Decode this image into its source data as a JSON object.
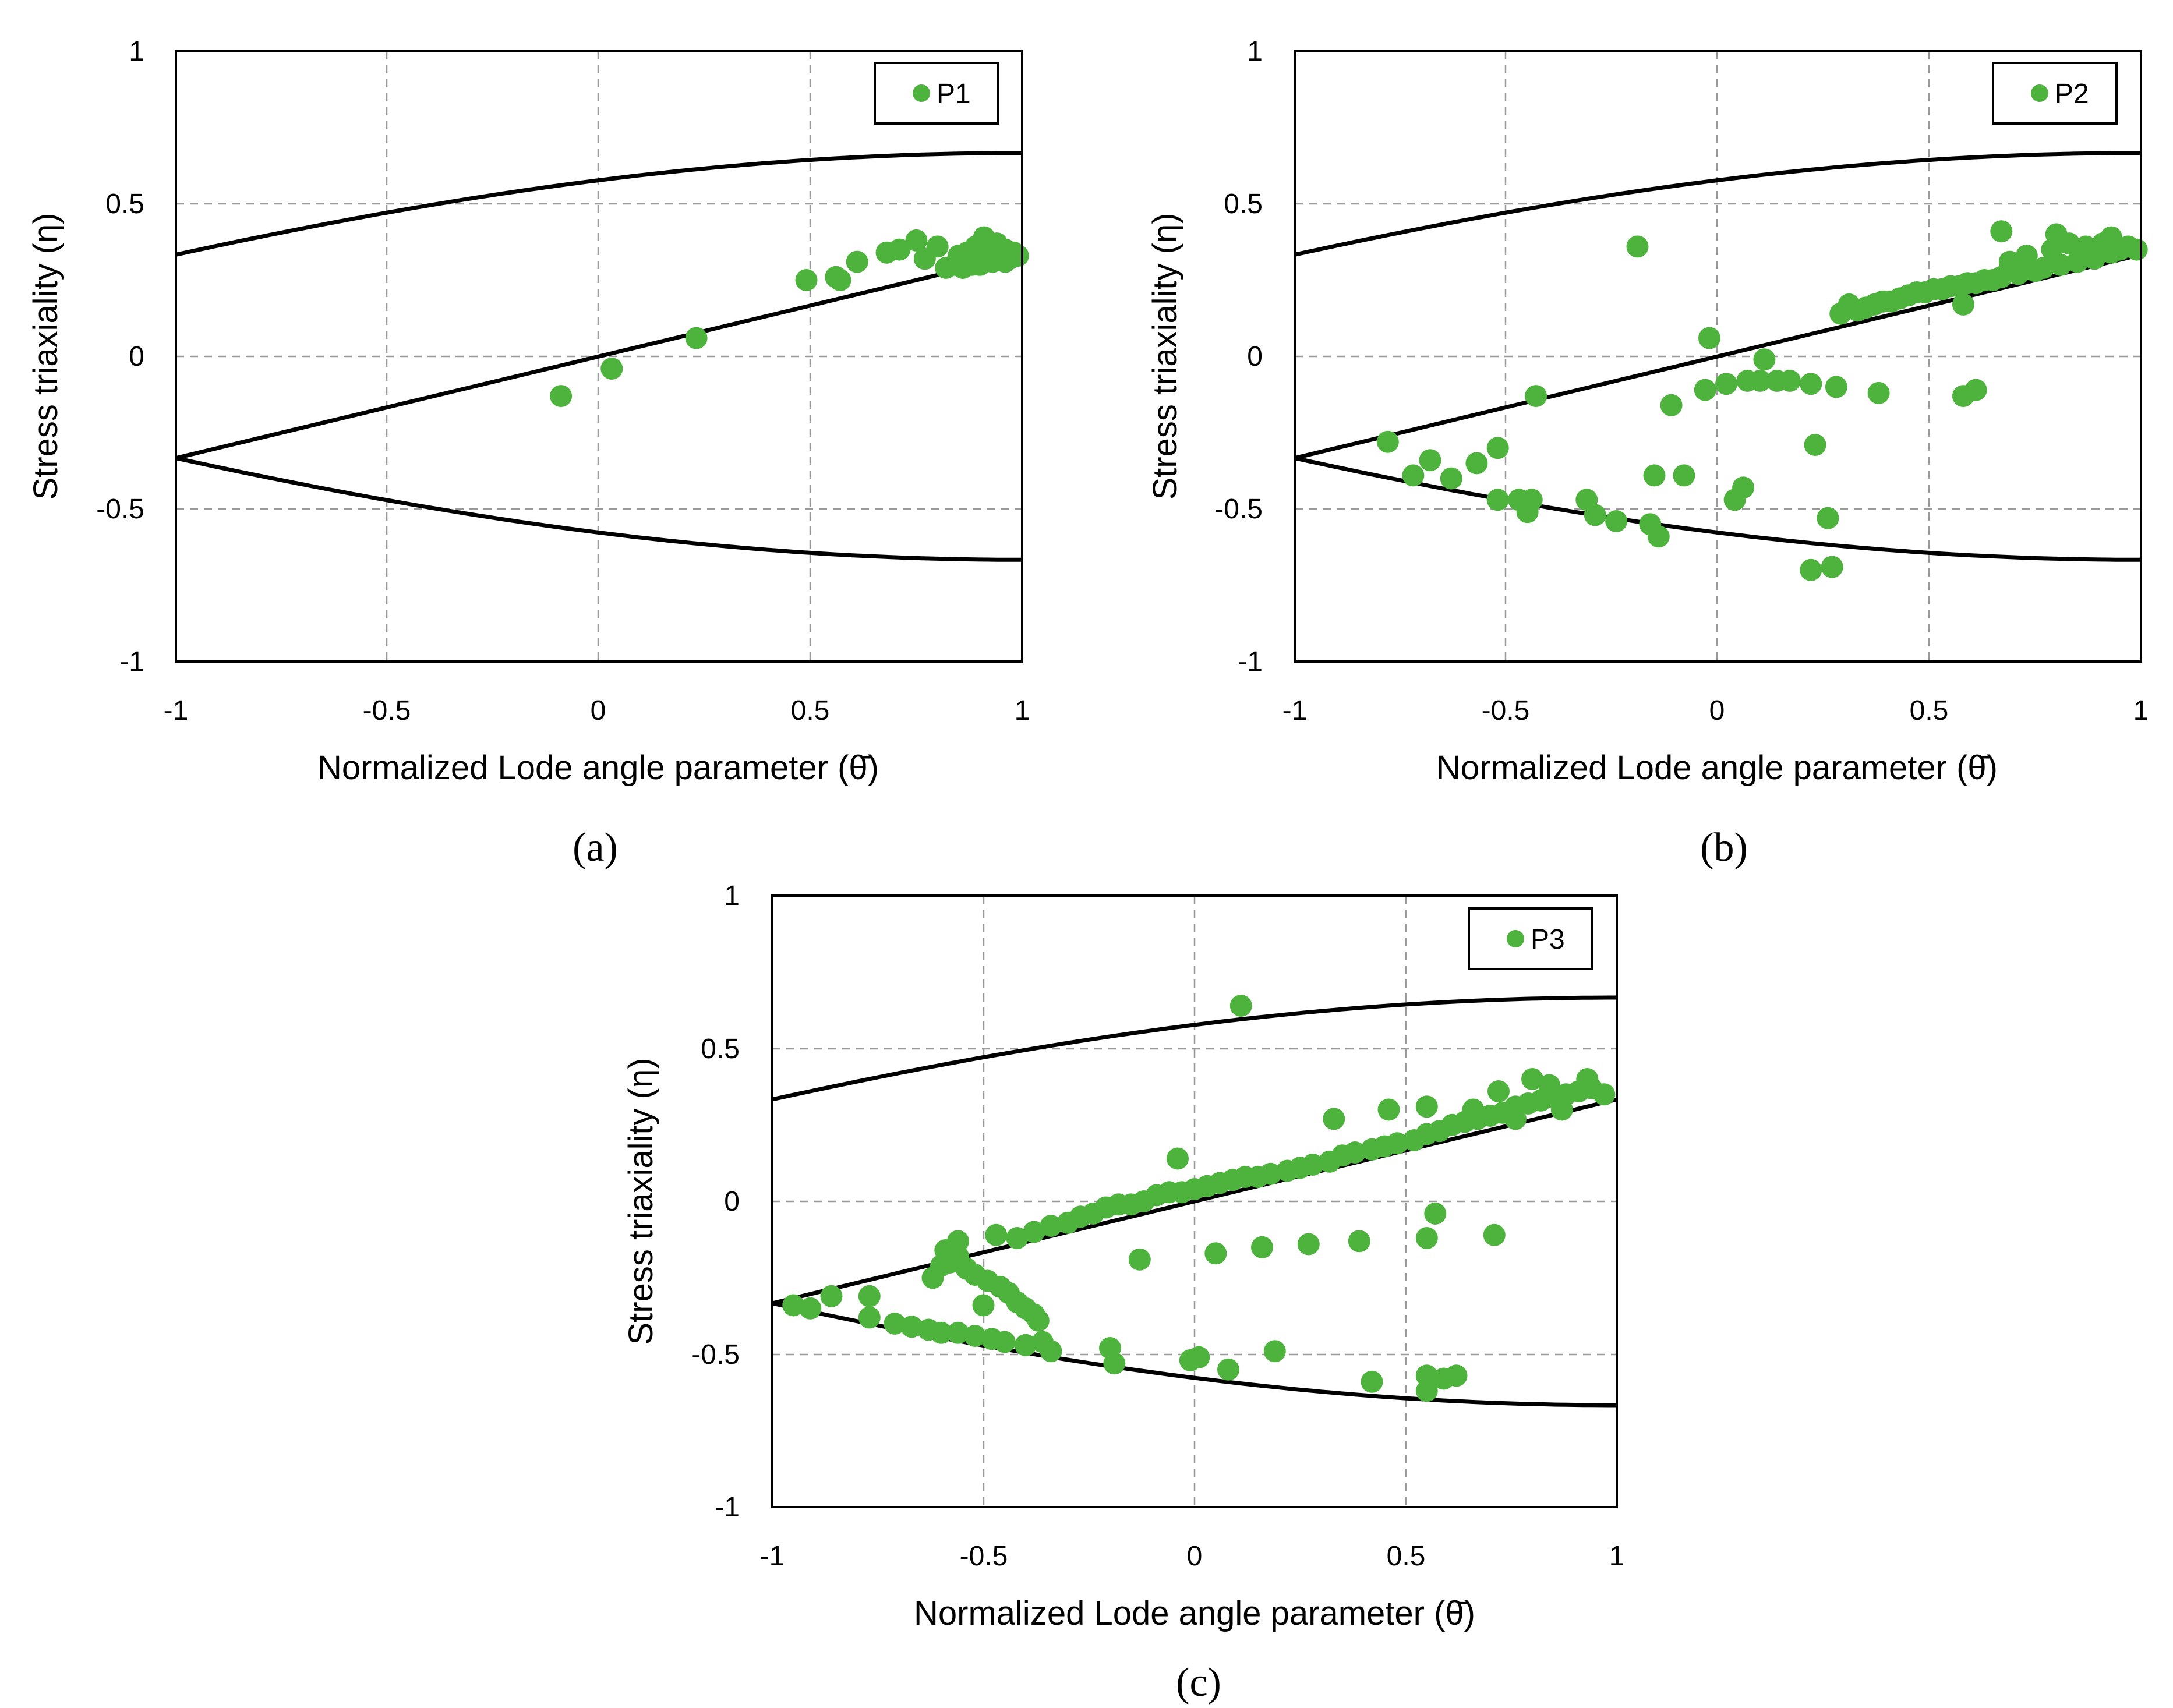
{
  "marker_color": "#4db33d",
  "chart_data": [
    {
      "type": "scatter",
      "panel": "(a)",
      "series_name": "P1",
      "xlabel": "Normalized Lode angle parameter (θ̄)",
      "ylabel": "Stress triaxiality (η)",
      "xlim": [
        -1,
        1
      ],
      "ylim": [
        -1,
        1
      ],
      "x_ticks": [
        "-1",
        "-0.5",
        "0",
        "0.5",
        "1"
      ],
      "y_ticks": [
        "1",
        "0.5",
        "0",
        "-0.5",
        "-1"
      ],
      "grid": true,
      "legend_position": "top-right",
      "points": [
        [
          -0.09,
          -0.13
        ],
        [
          0.03,
          -0.04
        ],
        [
          0.23,
          0.06
        ],
        [
          0.49,
          0.25
        ],
        [
          0.56,
          0.26
        ],
        [
          0.57,
          0.25
        ],
        [
          0.61,
          0.31
        ],
        [
          0.68,
          0.34
        ],
        [
          0.71,
          0.35
        ],
        [
          0.75,
          0.38
        ],
        [
          0.77,
          0.32
        ],
        [
          0.8,
          0.36
        ],
        [
          0.82,
          0.29
        ],
        [
          0.84,
          0.3
        ],
        [
          0.85,
          0.33
        ],
        [
          0.86,
          0.31
        ],
        [
          0.87,
          0.34
        ],
        [
          0.88,
          0.3
        ],
        [
          0.89,
          0.36
        ],
        [
          0.9,
          0.32
        ],
        [
          0.91,
          0.39
        ],
        [
          0.92,
          0.35
        ],
        [
          0.93,
          0.31
        ],
        [
          0.94,
          0.37
        ],
        [
          0.95,
          0.33
        ],
        [
          0.96,
          0.35
        ],
        [
          0.97,
          0.32
        ],
        [
          0.98,
          0.34
        ],
        [
          0.99,
          0.33
        ],
        [
          0.88,
          0.32
        ],
        [
          0.9,
          0.3
        ],
        [
          0.92,
          0.33
        ],
        [
          0.94,
          0.34
        ],
        [
          0.96,
          0.31
        ],
        [
          0.86,
          0.29
        ]
      ]
    },
    {
      "type": "scatter",
      "panel": "(b)",
      "series_name": "P2",
      "xlabel": "Normalized Lode angle parameter (θ̄)",
      "ylabel": "Stress triaxiality (η)",
      "xlim": [
        -1,
        1
      ],
      "ylim": [
        -1,
        1
      ],
      "x_ticks": [
        "-1",
        "-0.5",
        "0",
        "0.5",
        "1"
      ],
      "y_ticks": [
        "1",
        "0.5",
        "0",
        "-0.5",
        "-1"
      ],
      "grid": true,
      "legend_position": "top-right",
      "points": [
        [
          -0.78,
          -0.28
        ],
        [
          -0.72,
          -0.39
        ],
        [
          -0.68,
          -0.34
        ],
        [
          -0.63,
          -0.4
        ],
        [
          -0.57,
          -0.35
        ],
        [
          -0.52,
          -0.3
        ],
        [
          -0.52,
          -0.47
        ],
        [
          -0.47,
          -0.47
        ],
        [
          -0.45,
          -0.51
        ],
        [
          -0.44,
          -0.47
        ],
        [
          -0.43,
          -0.13
        ],
        [
          -0.31,
          -0.47
        ],
        [
          -0.29,
          -0.52
        ],
        [
          -0.24,
          -0.54
        ],
        [
          -0.19,
          0.36
        ],
        [
          -0.16,
          -0.55
        ],
        [
          -0.15,
          -0.39
        ],
        [
          -0.14,
          -0.59
        ],
        [
          -0.11,
          -0.16
        ],
        [
          -0.08,
          -0.39
        ],
        [
          -0.02,
          0.06
        ],
        [
          -0.03,
          -0.11
        ],
        [
          0.02,
          -0.09
        ],
        [
          0.04,
          -0.47
        ],
        [
          0.06,
          -0.43
        ],
        [
          0.07,
          -0.08
        ],
        [
          0.1,
          -0.08
        ],
        [
          0.11,
          -0.01
        ],
        [
          0.14,
          -0.08
        ],
        [
          0.17,
          -0.08
        ],
        [
          0.22,
          -0.09
        ],
        [
          0.23,
          -0.29
        ],
        [
          0.22,
          -0.7
        ],
        [
          0.26,
          -0.53
        ],
        [
          0.27,
          -0.69
        ],
        [
          0.28,
          -0.1
        ],
        [
          0.38,
          -0.12
        ],
        [
          0.58,
          0.17
        ],
        [
          0.58,
          -0.13
        ],
        [
          0.61,
          -0.11
        ],
        [
          0.67,
          0.41
        ],
        [
          0.8,
          0.4
        ],
        [
          0.93,
          0.39
        ],
        [
          0.29,
          0.14
        ],
        [
          0.31,
          0.17
        ],
        [
          0.33,
          0.15
        ],
        [
          0.35,
          0.16
        ],
        [
          0.37,
          0.17
        ],
        [
          0.39,
          0.18
        ],
        [
          0.41,
          0.18
        ],
        [
          0.43,
          0.19
        ],
        [
          0.45,
          0.2
        ],
        [
          0.47,
          0.21
        ],
        [
          0.49,
          0.21
        ],
        [
          0.51,
          0.22
        ],
        [
          0.53,
          0.22
        ],
        [
          0.55,
          0.23
        ],
        [
          0.57,
          0.23
        ],
        [
          0.59,
          0.24
        ],
        [
          0.61,
          0.24
        ],
        [
          0.63,
          0.25
        ],
        [
          0.65,
          0.25
        ],
        [
          0.67,
          0.26
        ],
        [
          0.69,
          0.31
        ],
        [
          0.71,
          0.27
        ],
        [
          0.73,
          0.33
        ],
        [
          0.75,
          0.28
        ],
        [
          0.77,
          0.29
        ],
        [
          0.79,
          0.35
        ],
        [
          0.81,
          0.3
        ],
        [
          0.83,
          0.37
        ],
        [
          0.85,
          0.31
        ],
        [
          0.87,
          0.36
        ],
        [
          0.89,
          0.32
        ],
        [
          0.91,
          0.37
        ],
        [
          0.93,
          0.34
        ],
        [
          0.95,
          0.35
        ],
        [
          0.97,
          0.36
        ],
        [
          0.99,
          0.35
        ]
      ]
    },
    {
      "type": "scatter",
      "panel": "(c)",
      "series_name": "P3",
      "xlabel": "Normalized Lode angle parameter (θ̄)",
      "ylabel": "Stress triaxiality (η)",
      "xlim": [
        -1,
        1
      ],
      "ylim": [
        -1,
        1
      ],
      "x_ticks": [
        "-1",
        "-0.5",
        "0",
        "0.5",
        "1"
      ],
      "y_ticks": [
        "1",
        "0.5",
        "0",
        "-0.5",
        "-1"
      ],
      "grid": true,
      "legend_position": "top-right",
      "points": [
        [
          -0.95,
          -0.34
        ],
        [
          -0.91,
          -0.35
        ],
        [
          -0.86,
          -0.31
        ],
        [
          -0.77,
          -0.31
        ],
        [
          -0.77,
          -0.38
        ],
        [
          -0.71,
          -0.4
        ],
        [
          -0.67,
          -0.41
        ],
        [
          -0.63,
          -0.42
        ],
        [
          -0.6,
          -0.43
        ],
        [
          -0.56,
          -0.43
        ],
        [
          -0.52,
          -0.44
        ],
        [
          -0.48,
          -0.45
        ],
        [
          -0.45,
          -0.46
        ],
        [
          -0.4,
          -0.47
        ],
        [
          -0.36,
          -0.46
        ],
        [
          -0.34,
          -0.49
        ],
        [
          -0.2,
          -0.48
        ],
        [
          -0.19,
          -0.53
        ],
        [
          -0.01,
          -0.52
        ],
        [
          0.01,
          -0.51
        ],
        [
          0.08,
          -0.55
        ],
        [
          0.19,
          -0.49
        ],
        [
          0.42,
          -0.59
        ],
        [
          0.55,
          -0.57
        ],
        [
          0.55,
          -0.62
        ],
        [
          0.59,
          -0.58
        ],
        [
          0.62,
          -0.57
        ],
        [
          -0.62,
          -0.25
        ],
        [
          -0.6,
          -0.21
        ],
        [
          -0.59,
          -0.16
        ],
        [
          -0.58,
          -0.2
        ],
        [
          -0.56,
          -0.18
        ],
        [
          -0.54,
          -0.22
        ],
        [
          -0.52,
          -0.24
        ],
        [
          -0.5,
          -0.34
        ],
        [
          -0.49,
          -0.26
        ],
        [
          -0.46,
          -0.28
        ],
        [
          -0.44,
          -0.3
        ],
        [
          -0.42,
          -0.33
        ],
        [
          -0.4,
          -0.35
        ],
        [
          -0.38,
          -0.37
        ],
        [
          -0.37,
          -0.39
        ],
        [
          -0.56,
          -0.13
        ],
        [
          -0.47,
          -0.11
        ],
        [
          -0.42,
          -0.12
        ],
        [
          -0.38,
          -0.1
        ],
        [
          -0.34,
          -0.08
        ],
        [
          -0.3,
          -0.07
        ],
        [
          -0.27,
          -0.05
        ],
        [
          -0.24,
          -0.04
        ],
        [
          -0.21,
          -0.02
        ],
        [
          -0.18,
          -0.01
        ],
        [
          -0.15,
          -0.01
        ],
        [
          -0.12,
          0.0
        ],
        [
          -0.09,
          0.02
        ],
        [
          -0.06,
          0.03
        ],
        [
          -0.03,
          0.03
        ],
        [
          0.0,
          0.04
        ],
        [
          0.03,
          0.05
        ],
        [
          0.06,
          0.06
        ],
        [
          0.09,
          0.07
        ],
        [
          0.12,
          0.08
        ],
        [
          0.15,
          0.08
        ],
        [
          0.18,
          0.09
        ],
        [
          0.22,
          0.1
        ],
        [
          0.25,
          0.11
        ],
        [
          0.28,
          0.12
        ],
        [
          0.32,
          0.13
        ],
        [
          0.35,
          0.15
        ],
        [
          0.38,
          0.16
        ],
        [
          0.42,
          0.17
        ],
        [
          0.45,
          0.18
        ],
        [
          0.48,
          0.19
        ],
        [
          0.52,
          0.2
        ],
        [
          0.55,
          0.22
        ],
        [
          0.58,
          0.23
        ],
        [
          0.61,
          0.25
        ],
        [
          0.64,
          0.26
        ],
        [
          0.67,
          0.27
        ],
        [
          0.7,
          0.28
        ],
        [
          0.73,
          0.29
        ],
        [
          0.76,
          0.31
        ],
        [
          0.79,
          0.32
        ],
        [
          0.82,
          0.33
        ],
        [
          0.85,
          0.34
        ],
        [
          0.88,
          0.35
        ],
        [
          0.91,
          0.36
        ],
        [
          0.94,
          0.37
        ],
        [
          0.97,
          0.35
        ],
        [
          0.8,
          0.4
        ],
        [
          0.84,
          0.38
        ],
        [
          0.93,
          0.4
        ],
        [
          0.72,
          0.36
        ],
        [
          0.66,
          0.3
        ],
        [
          0.76,
          0.27
        ],
        [
          0.87,
          0.3
        ],
        [
          -0.13,
          -0.19
        ],
        [
          -0.04,
          0.14
        ],
        [
          0.05,
          -0.17
        ],
        [
          0.11,
          0.64
        ],
        [
          0.16,
          -0.15
        ],
        [
          0.27,
          -0.14
        ],
        [
          0.33,
          0.27
        ],
        [
          0.39,
          -0.13
        ],
        [
          0.46,
          0.3
        ],
        [
          0.55,
          0.31
        ],
        [
          0.55,
          -0.12
        ],
        [
          0.57,
          -0.04
        ],
        [
          0.71,
          -0.11
        ]
      ]
    }
  ]
}
